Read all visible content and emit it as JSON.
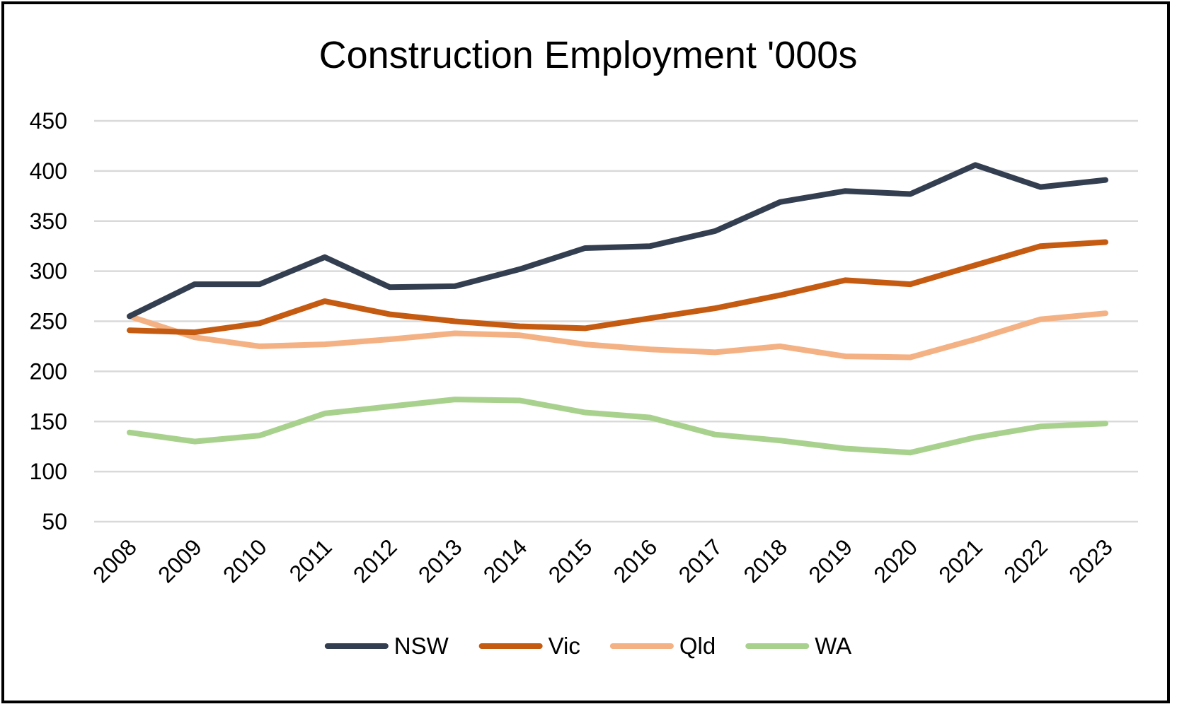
{
  "chart_data": {
    "type": "line",
    "title": "Construction Employment '000s",
    "xlabel": "",
    "ylabel": "",
    "categories": [
      "2008",
      "2009",
      "2010",
      "2011",
      "2012",
      "2013",
      "2014",
      "2015",
      "2016",
      "2017",
      "2018",
      "2019",
      "2020",
      "2021",
      "2022",
      "2023"
    ],
    "ylim": [
      50,
      450
    ],
    "yticks": [
      "450",
      "400",
      "350",
      "300",
      "250",
      "200",
      "150",
      "100",
      "50"
    ],
    "grid": true,
    "legend_position": "bottom",
    "series": [
      {
        "name": "NSW",
        "color": "#333F50",
        "values": [
          255,
          287,
          287,
          314,
          284,
          285,
          302,
          323,
          325,
          340,
          369,
          380,
          377,
          406,
          384,
          391
        ]
      },
      {
        "name": "Vic",
        "color": "#C55A11",
        "values": [
          241,
          239,
          248,
          270,
          257,
          250,
          245,
          243,
          253,
          263,
          276,
          291,
          287,
          306,
          325,
          329
        ]
      },
      {
        "name": "Qld",
        "color": "#F4B183",
        "values": [
          255,
          234,
          225,
          227,
          232,
          238,
          236,
          227,
          222,
          219,
          225,
          215,
          214,
          232,
          252,
          258
        ]
      },
      {
        "name": "WA",
        "color": "#A9D18E",
        "values": [
          139,
          130,
          136,
          158,
          165,
          172,
          171,
          159,
          154,
          137,
          131,
          123,
          119,
          134,
          145,
          148
        ]
      }
    ]
  }
}
